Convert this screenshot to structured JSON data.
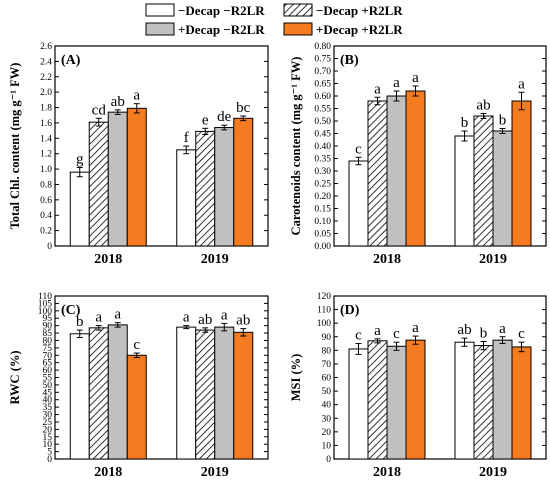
{
  "legend": [
    {
      "label": "−Decap −R2LR",
      "fill": "white"
    },
    {
      "label": "−Decap +R2LR",
      "fill": "hatch"
    },
    {
      "label": "+Decap −R2LR",
      "fill": "#c0c0c0"
    },
    {
      "label": "+Decap +R2LR",
      "fill": "#f47b20"
    }
  ],
  "colors": {
    "control": "#ffffff",
    "hatched": "hatch",
    "decap": "#c0c0c0",
    "decap_r2lr": "#f47b20"
  },
  "chart_data": [
    {
      "type": "bar",
      "panel": "(A)",
      "ylabel": "Total Chl. content (mg g⁻¹ FW)",
      "categories": [
        "2018",
        "2019"
      ],
      "ylim": [
        0,
        2.6
      ],
      "yticks": [
        "0",
        "0.2",
        "0.4",
        "0.6",
        "0.8",
        "1.0",
        "1.2",
        "1.4",
        "1.6",
        "1.8",
        "2.0",
        "2.2",
        "2.4",
        "2.6"
      ],
      "series": [
        {
          "name": "−Decap −R2LR",
          "values": [
            0.96,
            1.25
          ],
          "errors": [
            0.06,
            0.05
          ],
          "letters": [
            "g",
            "f"
          ]
        },
        {
          "name": "−Decap +R2LR",
          "values": [
            1.61,
            1.49
          ],
          "errors": [
            0.05,
            0.04
          ],
          "letters": [
            "cd",
            "e"
          ]
        },
        {
          "name": "+Decap −R2LR",
          "values": [
            1.74,
            1.54
          ],
          "errors": [
            0.03,
            0.03
          ],
          "letters": [
            "ab",
            "de"
          ]
        },
        {
          "name": "+Decap +R2LR",
          "values": [
            1.79,
            1.66
          ],
          "errors": [
            0.06,
            0.03
          ],
          "letters": [
            "a",
            "bc"
          ]
        }
      ]
    },
    {
      "type": "bar",
      "panel": "(B)",
      "ylabel": "Carotenoids content (mg g⁻¹ FW)",
      "categories": [
        "2018",
        "2019"
      ],
      "ylim": [
        0,
        0.8
      ],
      "yticks": [
        "0.00",
        "0.05",
        "0.10",
        "0.15",
        "0.20",
        "0.25",
        "0.30",
        "0.35",
        "0.40",
        "0.45",
        "0.50",
        "0.55",
        "0.60",
        "0.65",
        "0.70",
        "0.75",
        "0.80"
      ],
      "series": [
        {
          "name": "−Decap −R2LR",
          "values": [
            0.34,
            0.44
          ],
          "errors": [
            0.015,
            0.02
          ],
          "letters": [
            "c",
            "b"
          ]
        },
        {
          "name": "−Decap +R2LR",
          "values": [
            0.58,
            0.52
          ],
          "errors": [
            0.015,
            0.01
          ],
          "letters": [
            "a",
            "ab"
          ]
        },
        {
          "name": "+Decap −R2LR",
          "values": [
            0.6,
            0.46
          ],
          "errors": [
            0.02,
            0.01
          ],
          "letters": [
            "a",
            "b"
          ]
        },
        {
          "name": "+Decap +R2LR",
          "values": [
            0.62,
            0.58
          ],
          "errors": [
            0.02,
            0.035
          ],
          "letters": [
            "a",
            "a"
          ]
        }
      ]
    },
    {
      "type": "bar",
      "panel": "(C)",
      "ylabel": "RWC (%)",
      "categories": [
        "2018",
        "2019"
      ],
      "ylim": [
        0,
        110
      ],
      "yticks": [
        "0",
        "5",
        "10",
        "15",
        "20",
        "25",
        "30",
        "35",
        "40",
        "45",
        "50",
        "55",
        "60",
        "65",
        "70",
        "75",
        "80",
        "85",
        "90",
        "95",
        "100",
        "105",
        "110"
      ],
      "series": [
        {
          "name": "−Decap −R2LR",
          "values": [
            84.5,
            89.0
          ],
          "errors": [
            2.5,
            1.0
          ],
          "letters": [
            "b",
            "a"
          ]
        },
        {
          "name": "−Decap +R2LR",
          "values": [
            88.5,
            87.0
          ],
          "errors": [
            1.5,
            1.5
          ],
          "letters": [
            "a",
            "ab"
          ]
        },
        {
          "name": "+Decap −R2LR",
          "values": [
            90.5,
            89.0
          ],
          "errors": [
            1.5,
            2.5
          ],
          "letters": [
            "a",
            "a"
          ]
        },
        {
          "name": "+Decap +R2LR",
          "values": [
            70.0,
            85.5
          ],
          "errors": [
            1.5,
            2.5
          ],
          "letters": [
            "c",
            "ab"
          ]
        }
      ]
    },
    {
      "type": "bar",
      "panel": "(D)",
      "ylabel": "MSI (%)",
      "categories": [
        "2018",
        "2019"
      ],
      "ylim": [
        0,
        120
      ],
      "yticks": [
        "0",
        "10",
        "20",
        "30",
        "40",
        "50",
        "60",
        "70",
        "80",
        "90",
        "100",
        "110",
        "120"
      ],
      "series": [
        {
          "name": "−Decap −R2LR",
          "values": [
            81.0,
            86.0
          ],
          "errors": [
            4.0,
            3.0
          ],
          "letters": [
            "c",
            "ab"
          ]
        },
        {
          "name": "−Decap +R2LR",
          "values": [
            87.0,
            83.5
          ],
          "errors": [
            1.5,
            3.0
          ],
          "letters": [
            "a",
            "b"
          ]
        },
        {
          "name": "+Decap −R2LR",
          "values": [
            83.0,
            87.5
          ],
          "errors": [
            3.0,
            2.5
          ],
          "letters": [
            "c",
            "a"
          ]
        },
        {
          "name": "+Decap +R2LR",
          "values": [
            87.5,
            82.5
          ],
          "errors": [
            3.0,
            3.5
          ],
          "letters": [
            "a",
            "c"
          ]
        }
      ]
    }
  ]
}
